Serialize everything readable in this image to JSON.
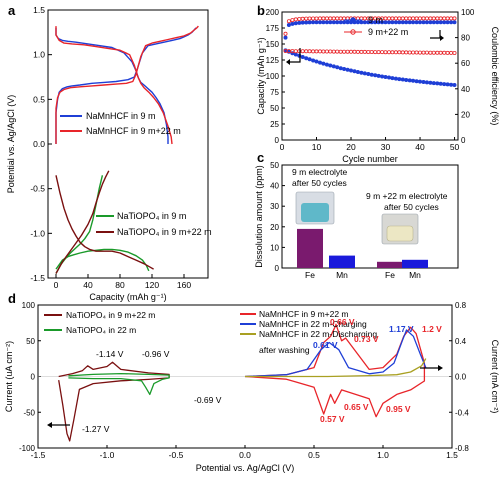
{
  "chart_data": [
    {
      "panel_label": "a",
      "type": "line",
      "xlabel": "Capacity (mAh g⁻¹)",
      "ylabel": "Potential vs. Ag/AgCl (V)",
      "xlim": [
        -10,
        190
      ],
      "ylim": [
        -1.5,
        1.5
      ],
      "x_ticks": [
        "0",
        "40",
        "80",
        "120",
        "160"
      ],
      "y_ticks": [
        "-1.5",
        "-1.0",
        "-0.5",
        "0.0",
        "0.5",
        "1.0",
        "1.5"
      ],
      "legend_top": [
        "NaMnHCF in 9 m",
        "NaMnHCF in 9 m+22 m"
      ],
      "legend_bottom": [
        "NaTiOPO₄ in 9 m",
        "NaTiOPO₄ in 9 m+22 m"
      ],
      "colors": {
        "blue": "#1f3fd6",
        "red": "#e8252a",
        "green": "#1a9a2a",
        "brown": "#7a1010"
      },
      "series": [
        {
          "name": "NaMnHCF in 9 m",
          "color": "#1f3fd6",
          "x": [
            0,
            0,
            2,
            4,
            8,
            14,
            20,
            30,
            45,
            60,
            75,
            90,
            98,
            102,
            108,
            115,
            125,
            135,
            145,
            155,
            160,
            165,
            170,
            175
          ],
          "y": [
            0.0,
            0.35,
            0.5,
            0.58,
            0.62,
            0.64,
            0.65,
            0.66,
            0.68,
            0.69,
            0.7,
            0.72,
            0.75,
            0.85,
            1.02,
            1.1,
            1.12,
            1.14,
            1.16,
            1.18,
            1.2,
            1.22,
            1.25,
            1.3
          ]
        },
        {
          "name": "NaMnHCF in 9 m",
          "color": "#1f3fd6",
          "x": [
            0,
            0,
            3,
            8,
            15,
            25,
            40,
            55,
            70,
            85,
            95,
            100,
            103,
            106,
            110,
            115,
            120,
            125,
            130,
            135,
            138,
            140,
            140
          ],
          "y": [
            1.3,
            1.22,
            1.18,
            1.16,
            1.15,
            1.14,
            1.12,
            1.1,
            1.08,
            1.02,
            0.92,
            0.82,
            0.74,
            0.69,
            0.66,
            0.62,
            0.58,
            0.52,
            0.45,
            0.35,
            0.22,
            0.08,
            0.0
          ]
        },
        {
          "name": "NaMnHCF in 9 m+22 m",
          "color": "#e8252a",
          "x": [
            0,
            0,
            2,
            5,
            10,
            18,
            30,
            45,
            60,
            75,
            88,
            96,
            100,
            106,
            112,
            120,
            130,
            140,
            150,
            160,
            168,
            172,
            176,
            178
          ],
          "y": [
            0.0,
            0.4,
            0.52,
            0.58,
            0.61,
            0.63,
            0.64,
            0.65,
            0.66,
            0.67,
            0.68,
            0.7,
            0.78,
            0.98,
            1.1,
            1.13,
            1.15,
            1.17,
            1.19,
            1.21,
            1.24,
            1.27,
            1.3,
            1.32
          ]
        },
        {
          "name": "NaMnHCF in 9 m+22 m",
          "color": "#e8252a",
          "x": [
            0,
            0,
            4,
            10,
            20,
            35,
            50,
            65,
            80,
            92,
            98,
            102,
            106,
            110,
            116,
            122,
            128,
            134,
            140,
            144,
            145
          ],
          "y": [
            1.32,
            1.22,
            1.16,
            1.13,
            1.12,
            1.11,
            1.09,
            1.07,
            1.05,
            1.0,
            0.88,
            0.76,
            0.68,
            0.63,
            0.58,
            0.52,
            0.45,
            0.35,
            0.2,
            0.08,
            0.0
          ]
        },
        {
          "name": "NaTiOPO₄ in 9 m",
          "color": "#1a9a2a",
          "x": [
            0,
            8,
            15,
            22,
            30,
            40,
            50,
            60,
            70,
            80,
            90,
            100,
            108,
            113,
            116
          ],
          "y": [
            -1.4,
            -1.3,
            -1.26,
            -1.24,
            -1.22,
            -1.2,
            -1.19,
            -1.18,
            -1.18,
            -1.19,
            -1.21,
            -1.25,
            -1.3,
            -1.36,
            -1.42
          ]
        },
        {
          "name": "NaTiOPO₄ in 9 m",
          "color": "#1a9a2a",
          "x": [
            0,
            6,
            12,
            18,
            24,
            30,
            36,
            42,
            46,
            50,
            54,
            58
          ],
          "y": [
            -1.45,
            -1.35,
            -1.28,
            -1.22,
            -1.17,
            -1.12,
            -1.06,
            -0.98,
            -0.85,
            -0.68,
            -0.5,
            -0.35
          ]
        },
        {
          "name": "NaTiOPO₄ in 9 m+22 m",
          "color": "#7a1010",
          "x": [
            0,
            5,
            10,
            15,
            20,
            25,
            30,
            36,
            42,
            50,
            60,
            70,
            80,
            90,
            100,
            110,
            118,
            122
          ],
          "y": [
            -0.35,
            -0.55,
            -0.72,
            -0.85,
            -0.95,
            -1.03,
            -1.1,
            -1.15,
            -1.18,
            -1.2,
            -1.2,
            -1.2,
            -1.22,
            -1.26,
            -1.3,
            -1.34,
            -1.38,
            -1.4
          ]
        },
        {
          "name": "NaTiOPO₄ in 9 m+22 m",
          "color": "#7a1010",
          "x": [
            0,
            8,
            16,
            24,
            32,
            40,
            46,
            50,
            54,
            58,
            62,
            66
          ],
          "y": [
            -1.45,
            -1.32,
            -1.22,
            -1.12,
            -1.02,
            -0.9,
            -0.78,
            -0.66,
            -0.55,
            -0.45,
            -0.37,
            -0.3
          ]
        }
      ]
    },
    {
      "panel_label": "b",
      "type": "scatter",
      "xlabel": "Cycle number",
      "ylabel": "Capacity (mAh g⁻¹)",
      "ylabel_right": "Coulombic efficiency (%)",
      "xlim": [
        0,
        51
      ],
      "ylim": [
        0,
        200
      ],
      "ylim_right": [
        0,
        100
      ],
      "x_ticks": [
        "0",
        "10",
        "20",
        "30",
        "40",
        "50"
      ],
      "y_ticks": [
        "0",
        "25",
        "50",
        "75",
        "100",
        "125",
        "150",
        "175",
        "200"
      ],
      "y_ticks_right": [
        "0",
        "20",
        "40",
        "60",
        "80",
        "100"
      ],
      "series": [
        {
          "name": "9 m",
          "color": "#1f3fd6",
          "quantity": "capacity",
          "start": 140,
          "end": 86
        },
        {
          "name": "9 m+22 m",
          "color": "#e8252a",
          "quantity": "capacity",
          "start": 139,
          "end": 136
        },
        {
          "name": "9 m",
          "color": "#1f3fd6",
          "quantity": "coulombic efficiency",
          "start": 80,
          "end": 92
        },
        {
          "name": "9 m+22 m",
          "color": "#e8252a",
          "quantity": "coulombic efficiency",
          "start": 83,
          "end": 95
        }
      ]
    },
    {
      "panel_label": "c",
      "type": "bar",
      "ylabel": "Dissolution amount (ppm)",
      "ylim": [
        0,
        50
      ],
      "y_ticks": [
        "0",
        "10",
        "20",
        "30",
        "40",
        "50"
      ],
      "groups": [
        "9 m electrolyte after  50 cycles",
        "9 m +22 m electrolyte after 50 cycles"
      ],
      "categories": [
        "Fe",
        "Mn",
        "Fe",
        "Mn"
      ],
      "values": [
        19,
        6,
        3,
        4
      ],
      "bar_colors": [
        "#7a1a6e",
        "#1a1adb",
        "#7a1a6e",
        "#1a1adb"
      ]
    },
    {
      "panel_label": "d",
      "type": "line",
      "xlabel": "Potential vs. Ag/AgCl (V)",
      "ylabel": "Current (uA cm⁻²)",
      "ylabel_right": "Current (mA cm⁻²)",
      "xlim": [
        -1.5,
        1.5
      ],
      "ylim": [
        -100,
        100
      ],
      "ylim_right": [
        -0.8,
        0.8
      ],
      "x_ticks": [
        "-1.5",
        "-1.0",
        "-0.5",
        "0.0",
        "0.5",
        "1.0",
        "1.5"
      ],
      "y_ticks": [
        "-100",
        "-50",
        "0",
        "50",
        "100"
      ],
      "y_ticks_right": [
        "-0.8",
        "-0.4",
        "0.0",
        "0.4",
        "0.8"
      ],
      "legend_left": [
        "NaTiOPO₄ in 9 m+22 m",
        "NaTiOPO₄ in 22 m"
      ],
      "legend_right": [
        "NaMnHCF in 9 m+22 m",
        "NaMnHCF in 22 m-Charging",
        "NaMnHCF in 22 m-Discharging after washing"
      ],
      "annotations": [
        "-1.14 V",
        "-0.96 V",
        "-0.69 V",
        "-1.27 V",
        "0.61 V",
        "0.66 V",
        "0.73 V",
        "1.17 V",
        "1.2 V",
        "0.57 V",
        "0.65 V",
        "0.95 V"
      ],
      "series": [
        {
          "name": "NaTiOPO₄ in 9 m+22 m",
          "color": "#7a1010",
          "axis": "left",
          "x": [
            -1.35,
            -1.32,
            -1.29,
            -1.27,
            -1.24,
            -1.2,
            -1.1,
            -0.9,
            -0.7,
            -0.55,
            -0.55,
            -0.7,
            -0.9,
            -0.96,
            -1.0,
            -1.1,
            -1.14,
            -1.18,
            -1.25,
            -1.35
          ],
          "y": [
            -5,
            -40,
            -80,
            -90,
            -60,
            -18,
            -10,
            -6,
            -4,
            -2,
            3,
            5,
            10,
            20,
            14,
            10,
            15,
            8,
            4,
            0
          ]
        },
        {
          "name": "NaTiOPO₄ in 22 m",
          "color": "#1a9a2a",
          "axis": "left",
          "x": [
            -1.28,
            -1.1,
            -0.9,
            -0.75,
            -0.72,
            -0.69,
            -0.66,
            -0.6,
            -0.55,
            -0.55,
            -0.7,
            -0.9,
            -1.1,
            -1.28
          ],
          "y": [
            -2,
            -3,
            -3,
            -6,
            -15,
            -25,
            -10,
            -4,
            -2,
            2,
            3,
            4,
            3,
            1
          ]
        },
        {
          "name": "NaMnHCF in 9 m+22 m",
          "color": "#e8252a",
          "axis": "right",
          "x": [
            0.0,
            0.3,
            0.5,
            0.57,
            0.62,
            0.66,
            0.7,
            0.73,
            0.9,
            1.0,
            1.1,
            1.15,
            1.2,
            1.24,
            1.3,
            1.3,
            1.2,
            1.1,
            1.0,
            0.95,
            0.9,
            0.7,
            0.65,
            0.62,
            0.57,
            0.5,
            0.3,
            0.0
          ],
          "y": [
            0.0,
            0.02,
            0.1,
            0.38,
            0.45,
            0.58,
            0.4,
            0.43,
            0.08,
            0.1,
            0.25,
            0.45,
            0.55,
            0.48,
            0.15,
            -0.05,
            -0.15,
            -0.2,
            -0.3,
            -0.45,
            -0.25,
            -0.15,
            -0.3,
            -0.2,
            -0.42,
            -0.12,
            -0.03,
            0.0
          ]
        },
        {
          "name": "NaMnHCF in 22 m-Charging",
          "color": "#1f3fd6",
          "axis": "right",
          "x": [
            0.0,
            0.3,
            0.45,
            0.55,
            0.61,
            0.68,
            0.75,
            0.9,
            1.0,
            1.08,
            1.14,
            1.17,
            1.22,
            1.27,
            1.31
          ],
          "y": [
            0.0,
            0.02,
            0.08,
            0.3,
            0.38,
            0.3,
            0.1,
            0.03,
            0.05,
            0.15,
            0.4,
            0.52,
            0.45,
            0.25,
            0.1
          ]
        },
        {
          "name": "NaMnHCF in 22 m-Discharging after washing",
          "color": "#a9a022",
          "axis": "right",
          "x": [
            0.0,
            0.3,
            0.6,
            0.9,
            1.1,
            1.2,
            1.28,
            1.31
          ],
          "y": [
            0.0,
            0.0,
            0.0,
            0.01,
            0.02,
            0.05,
            0.12,
            0.2
          ]
        }
      ]
    }
  ]
}
